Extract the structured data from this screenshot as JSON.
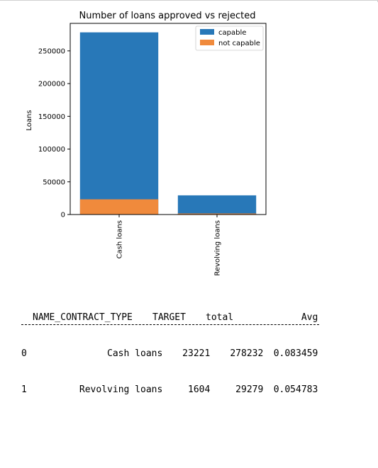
{
  "chart_data": {
    "type": "bar",
    "stacked": true,
    "title": "Number of loans approved vs rejected",
    "xlabel": "",
    "ylabel": "Loans",
    "categories": [
      "Cash loans",
      "Revolving loans"
    ],
    "series": [
      {
        "name": "capable",
        "values": [
          278232,
          29279
        ],
        "color": "#2878b8"
      },
      {
        "name": "not capable",
        "values": [
          23221,
          1604
        ],
        "color": "#f08a3c"
      }
    ],
    "ylim": [
      0,
      292000
    ],
    "yticks": [
      0,
      50000,
      100000,
      150000,
      200000,
      250000
    ],
    "ytick_labels": [
      "0",
      "50000",
      "100000",
      "150000",
      "200000",
      "250000"
    ],
    "legend": "top-right",
    "grid": false
  },
  "table": {
    "columns": [
      "NAME_CONTRACT_TYPE",
      "TARGET",
      "total",
      "Avg"
    ],
    "rows": [
      {
        "index": "0",
        "NAME_CONTRACT_TYPE": "Cash loans",
        "TARGET": "23221",
        "total": "278232",
        "Avg": "0.083459"
      },
      {
        "index": "1",
        "NAME_CONTRACT_TYPE": "Revolving loans",
        "TARGET": "1604",
        "total": "29279",
        "Avg": "0.054783"
      }
    ]
  }
}
